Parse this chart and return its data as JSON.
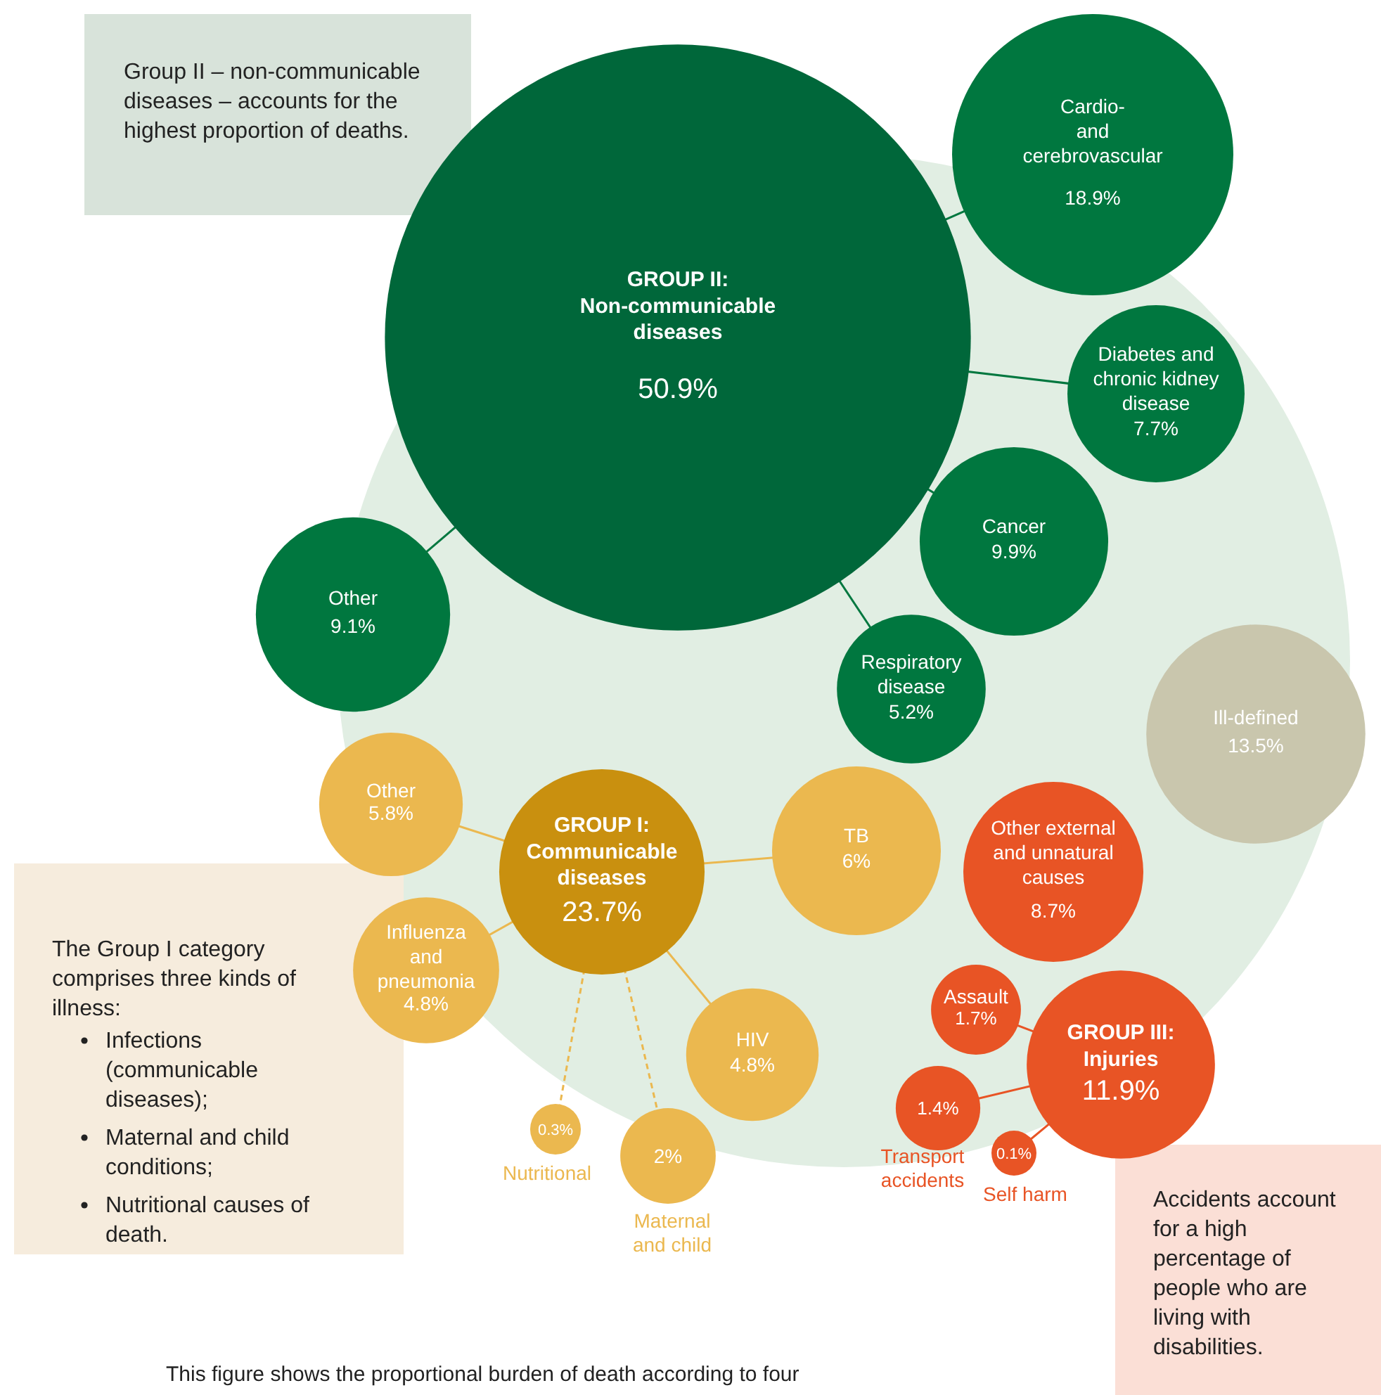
{
  "chart_data": {
    "type": "other",
    "categories": [
      "GROUP II: Non-communicable diseases",
      "Cardio- and cerebrovascular",
      "Diabetes and chronic kidney disease",
      "Cancer",
      "Respiratory disease",
      "Other",
      "GROUP I: Communicable diseases",
      "Other",
      "TB",
      "Influenza and pneumonia",
      "HIV",
      "Nutritional",
      "Maternal and child",
      "Ill-defined",
      "Other external and unnatural causes",
      "GROUP III: Injuries",
      "Assault",
      "Transport accidents",
      "Self harm"
    ],
    "values": [
      50.9,
      18.9,
      7.7,
      9.9,
      5.2,
      9.1,
      23.7,
      5.8,
      6,
      4.8,
      4.8,
      0.3,
      2,
      13.5,
      8.7,
      11.9,
      1.7,
      1.4,
      0.1
    ],
    "value_labels": [
      "50.9%",
      "18.9%",
      "7.7%",
      "9.9%",
      "5.2%",
      "9.1%",
      "23.7%",
      "5.8%",
      "6%",
      "4.8%",
      "4.8%",
      "0.3%",
      "2%",
      "13.5%",
      "8.7%",
      "11.9%",
      "1.7%",
      "1.4%",
      "0.1%"
    ],
    "colors": [
      "#00673a",
      "#00773f",
      "#00773f",
      "#00773f",
      "#00773f",
      "#00773f",
      "#c9900f",
      "#ebb84f",
      "#ebb84f",
      "#ebb84f",
      "#ebb84f",
      "#ebb84f",
      "#ebb84f",
      "#c9c6ad",
      "#e85425",
      "#e85425",
      "#e85425",
      "#e85425",
      "#e85425"
    ],
    "annotations": [
      "Group II – non-communicable diseases – accounts for the highest proportion of deaths.",
      "The Group I category comprises three kinds of illness:",
      "Infections (communicable diseases);",
      "Maternal and child conditions;",
      "Nutritional causes of death.",
      "Accidents account for a high percentage of people who are living with disabilities.",
      "This figure shows the proportional burden of death according to four"
    ]
  }
}
